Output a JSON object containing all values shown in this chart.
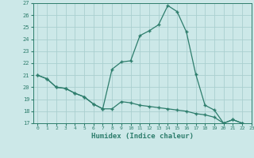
{
  "line1_x": [
    0,
    1,
    2,
    3,
    4,
    5,
    6,
    7,
    8,
    9,
    10,
    11,
    12,
    13,
    14,
    15,
    16,
    17,
    18,
    19,
    20,
    21,
    22,
    23
  ],
  "line1_y": [
    21.0,
    20.7,
    20.0,
    19.9,
    19.5,
    19.2,
    18.6,
    18.2,
    18.2,
    18.8,
    18.7,
    18.5,
    18.4,
    18.3,
    18.2,
    18.1,
    18.0,
    17.8,
    17.7,
    17.5,
    17.0,
    17.3,
    17.0,
    16.8
  ],
  "line2_x": [
    0,
    1,
    2,
    3,
    4,
    5,
    6,
    7,
    8,
    9,
    10,
    11,
    12,
    13,
    14,
    15,
    16,
    17,
    18,
    19,
    20,
    21,
    22,
    23
  ],
  "line2_y": [
    21.0,
    20.7,
    20.0,
    19.9,
    19.5,
    19.2,
    18.6,
    18.2,
    21.5,
    22.1,
    22.2,
    24.3,
    24.7,
    25.2,
    26.8,
    26.3,
    24.6,
    21.1,
    18.5,
    18.1,
    17.0,
    17.3,
    17.0,
    16.8
  ],
  "line_color": "#2d7d6c",
  "bg_color": "#cce8e8",
  "grid_color": "#aacfcf",
  "xlabel": "Humidex (Indice chaleur)",
  "ylim": [
    17,
    27
  ],
  "xlim": [
    -0.5,
    23
  ],
  "yticks": [
    17,
    18,
    19,
    20,
    21,
    22,
    23,
    24,
    25,
    26,
    27
  ],
  "xticks": [
    0,
    1,
    2,
    3,
    4,
    5,
    6,
    7,
    8,
    9,
    10,
    11,
    12,
    13,
    14,
    15,
    16,
    17,
    18,
    19,
    20,
    21,
    22,
    23
  ]
}
